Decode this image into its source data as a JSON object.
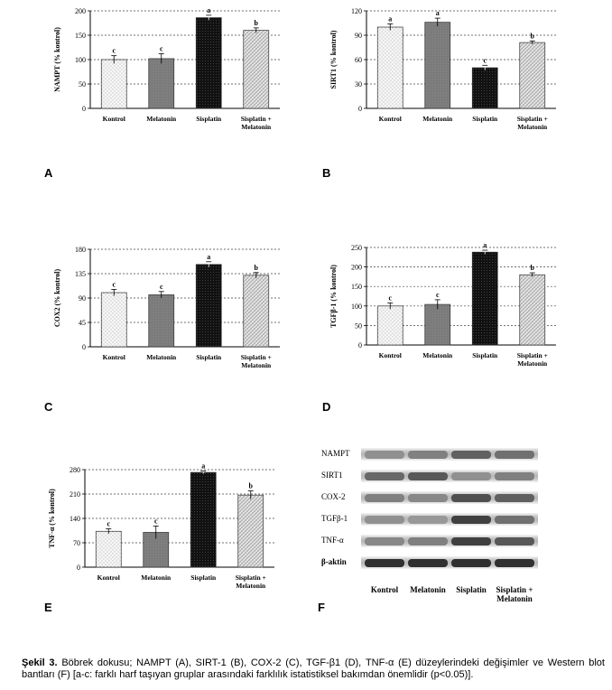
{
  "panels": [
    {
      "letter": "A",
      "ylabel": "NAMPT (% kontrol)",
      "yticks": [
        "0",
        "50",
        "100",
        "150",
        "200"
      ],
      "categories": [
        "Kontrol",
        "Melatonin",
        "Sisplatin",
        "Sisplatin +\nMelatonin"
      ],
      "values": [
        100,
        102,
        186,
        160
      ],
      "errors": [
        8,
        10,
        5,
        5
      ],
      "letters": [
        "c",
        "c",
        "a",
        "b"
      ],
      "ylim": [
        0,
        200
      ]
    },
    {
      "letter": "B",
      "ylabel": "SIRT1 (% kontrol)",
      "yticks": [
        "0",
        "30",
        "60",
        "90",
        "120"
      ],
      "categories": [
        "Kontrol",
        "Melatonin",
        "Sisplatin",
        "Sisplatin +\nMelatonin"
      ],
      "values": [
        100,
        106,
        50,
        81
      ],
      "errors": [
        4,
        5,
        3,
        2
      ],
      "letters": [
        "a",
        "a",
        "c",
        "b"
      ],
      "ylim": [
        0,
        120
      ]
    },
    {
      "letter": "C",
      "ylabel": "COX2 (% kontrol)",
      "yticks": [
        "0",
        "45",
        "90",
        "135",
        "180"
      ],
      "categories": [
        "Kontrol",
        "Melatonin",
        "Sisplatin",
        "Sisplatin +\nMelatonin"
      ],
      "values": [
        100,
        96,
        152,
        132
      ],
      "errors": [
        6,
        6,
        5,
        5
      ],
      "letters": [
        "c",
        "c",
        "a",
        "b"
      ],
      "ylim": [
        0,
        180
      ]
    },
    {
      "letter": "D",
      "ylabel": "TGFβ-1 (% kontrol)",
      "yticks": [
        "0",
        "50",
        "100",
        "150",
        "200",
        "250"
      ],
      "categories": [
        "Kontrol",
        "Melatonin",
        "Sisplatin",
        "Sisplatin +\nMelatonin"
      ],
      "values": [
        100,
        104,
        238,
        180
      ],
      "errors": [
        8,
        12,
        5,
        5
      ],
      "letters": [
        "c",
        "c",
        "a",
        "b"
      ],
      "ylim": [
        0,
        250
      ]
    },
    {
      "letter": "E",
      "ylabel": "TNF-α (% kontrol)",
      "yticks": [
        "0",
        "70",
        "140",
        "210",
        "280"
      ],
      "categories": [
        "Kontrol",
        "Melatonin",
        "Sisplatin",
        "Sisplatin +\nMelatonin"
      ],
      "values": [
        103,
        100,
        272,
        207
      ],
      "errors": [
        7,
        18,
        4,
        12
      ],
      "letters": [
        "c",
        "c",
        "a",
        "b"
      ],
      "ylim": [
        0,
        280
      ]
    }
  ],
  "chart_data": [
    {
      "type": "bar",
      "ylabel": "NAMPT (% kontrol)",
      "categories": [
        "Kontrol",
        "Melatonin",
        "Sisplatin",
        "Sisplatin + Melatonin"
      ],
      "values": [
        100,
        102,
        186,
        160
      ],
      "ylim": [
        0,
        200
      ]
    },
    {
      "type": "bar",
      "ylabel": "SIRT1 (% kontrol)",
      "categories": [
        "Kontrol",
        "Melatonin",
        "Sisplatin",
        "Sisplatin + Melatonin"
      ],
      "values": [
        100,
        106,
        50,
        81
      ],
      "ylim": [
        0,
        120
      ]
    },
    {
      "type": "bar",
      "ylabel": "COX2 (% kontrol)",
      "categories": [
        "Kontrol",
        "Melatonin",
        "Sisplatin",
        "Sisplatin + Melatonin"
      ],
      "values": [
        100,
        96,
        152,
        132
      ],
      "ylim": [
        0,
        180
      ]
    },
    {
      "type": "bar",
      "ylabel": "TGFβ-1 (% kontrol)",
      "categories": [
        "Kontrol",
        "Melatonin",
        "Sisplatin",
        "Sisplatin + Melatonin"
      ],
      "values": [
        100,
        104,
        238,
        180
      ],
      "ylim": [
        0,
        250
      ]
    },
    {
      "type": "bar",
      "ylabel": "TNF-α (% kontrol)",
      "categories": [
        "Kontrol",
        "Melatonin",
        "Sisplatin",
        "Sisplatin + Melatonin"
      ],
      "values": [
        103,
        100,
        272,
        207
      ],
      "ylim": [
        0,
        280
      ]
    }
  ],
  "blot": {
    "letter": "F",
    "rows": [
      "NAMPT",
      "SIRT1",
      "COX-2",
      "TGFβ-1",
      "TNF-α",
      "β-aktin"
    ],
    "columns": [
      "Kontrol",
      "Melatonin",
      "Sisplatin",
      "Sisplatin +\nMelatonin"
    ],
    "intensity": [
      [
        0.35,
        0.45,
        0.65,
        0.55
      ],
      [
        0.6,
        0.7,
        0.35,
        0.45
      ],
      [
        0.45,
        0.4,
        0.75,
        0.65
      ],
      [
        0.35,
        0.3,
        0.85,
        0.55
      ],
      [
        0.4,
        0.45,
        0.85,
        0.7
      ],
      [
        0.95,
        0.95,
        0.95,
        0.95
      ]
    ]
  },
  "caption": {
    "label": "Şekil 3.",
    "text": "Böbrek dokusu; NAMPT (A), SIRT-1 (B), COX-2 (C), TGF-β1 (D), TNF-α (E) düzeylerindeki değişimler ve Western blot bantları (F) [a-c: farklı harf taşıyan gruplar arasındaki farklılık istatistiksel bakımdan önemlidir (p<0.05)]."
  },
  "colors": {
    "kontrol": "#f2f2f2",
    "melatonin": "#7f7f7f",
    "sisplatin": "#111111",
    "combo": "#d9d9d9"
  }
}
